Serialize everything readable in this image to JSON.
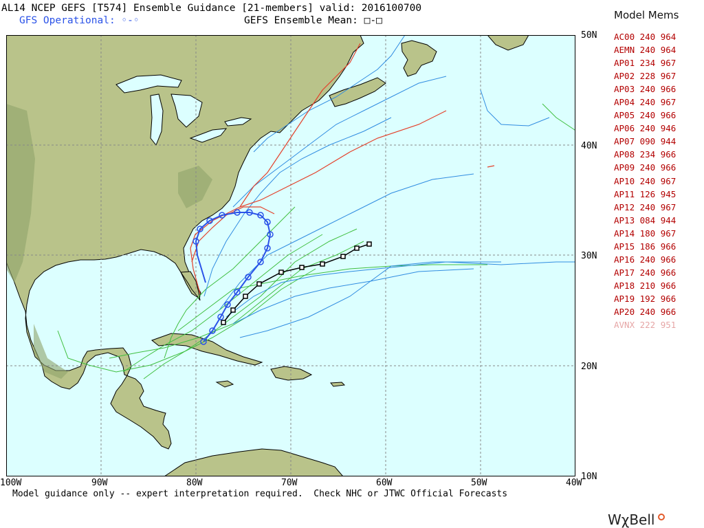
{
  "header": {
    "title": "AL14 NCEP GEFS [T574] Ensemble Guidance [21-members] valid: 2016100700",
    "gfs_operational": "GFS Operational: ◦-◦",
    "gefs_mean": "GEFS Ensemble Mean: □-□"
  },
  "legend": {
    "title": "Model Mems",
    "members": [
      {
        "id": "AC00",
        "hours": "240",
        "pressure": "964"
      },
      {
        "id": "AEMN",
        "hours": "240",
        "pressure": "964"
      },
      {
        "id": "AP01",
        "hours": "234",
        "pressure": "967"
      },
      {
        "id": "AP02",
        "hours": "228",
        "pressure": "967"
      },
      {
        "id": "AP03",
        "hours": "240",
        "pressure": "966"
      },
      {
        "id": "AP04",
        "hours": "240",
        "pressure": "967"
      },
      {
        "id": "AP05",
        "hours": "240",
        "pressure": "966"
      },
      {
        "id": "AP06",
        "hours": "240",
        "pressure": "946"
      },
      {
        "id": "AP07",
        "hours": "090",
        "pressure": "944"
      },
      {
        "id": "AP08",
        "hours": "234",
        "pressure": "966"
      },
      {
        "id": "AP09",
        "hours": "240",
        "pressure": "966"
      },
      {
        "id": "AP10",
        "hours": "240",
        "pressure": "967"
      },
      {
        "id": "AP11",
        "hours": "126",
        "pressure": "945"
      },
      {
        "id": "AP12",
        "hours": "240",
        "pressure": "967"
      },
      {
        "id": "AP13",
        "hours": "084",
        "pressure": "944"
      },
      {
        "id": "AP14",
        "hours": "180",
        "pressure": "967"
      },
      {
        "id": "AP15",
        "hours": "186",
        "pressure": "966"
      },
      {
        "id": "AP16",
        "hours": "240",
        "pressure": "966"
      },
      {
        "id": "AP17",
        "hours": "240",
        "pressure": "966"
      },
      {
        "id": "AP18",
        "hours": "210",
        "pressure": "966"
      },
      {
        "id": "AP19",
        "hours": "192",
        "pressure": "966"
      },
      {
        "id": "AP20",
        "hours": "240",
        "pressure": "966"
      },
      {
        "id": "AVNX",
        "hours": "222",
        "pressure": "951"
      }
    ]
  },
  "axes": {
    "lat_labels": [
      "50N",
      "40N",
      "30N",
      "20N",
      "10N"
    ],
    "lon_labels": [
      "100W",
      "90W",
      "80W",
      "70W",
      "60W",
      "50W",
      "40W"
    ]
  },
  "footer": "Model guidance only -- expert interpretation required.  Check NHC or JTWC Official Forecasts",
  "brand": "WχBell",
  "colors": {
    "ocean": "#dcffff",
    "land": "#b9c38a",
    "land_high": "#8fa46a",
    "border": "#000000",
    "grid": "#888888",
    "gfs_operational": "#2a52e8",
    "ensemble_mean": "#000000",
    "legend_text": "#b30000",
    "legend_text_faint": "#e6a6a6",
    "track_green": "#3fbf3f",
    "track_blue": "#2f8be0",
    "track_red": "#e4402a"
  }
}
